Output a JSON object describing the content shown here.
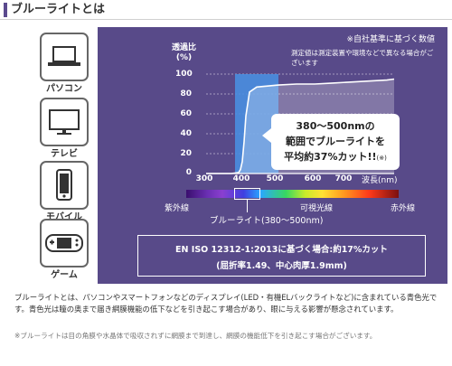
{
  "header": {
    "title": "ブルーライトとは"
  },
  "devices": [
    {
      "label": "パソコン",
      "icon": "laptop-icon"
    },
    {
      "label": "テレビ",
      "icon": "tv-icon"
    },
    {
      "label": "モバイル",
      "icon": "smartphone-icon"
    },
    {
      "label": "ゲーム",
      "icon": "game-console-icon"
    }
  ],
  "notes": {
    "header": "※自社基準に基づく数値",
    "sub": "測定値は測定装置や環境などで異なる場合がございます"
  },
  "chart_data": {
    "type": "line",
    "ylabel": "透過比\n(%)",
    "xlabel": "波長(nm)",
    "yticks": [
      100,
      80,
      60,
      40,
      20,
      0
    ],
    "xticks": [
      300,
      400,
      500,
      600,
      700
    ],
    "ylim": [
      0,
      100
    ],
    "xlim": [
      300,
      820
    ],
    "series": [
      {
        "x": [
          300,
          370,
          390,
          395,
          400,
          405,
          410,
          420,
          440,
          470,
          500,
          550,
          600,
          650,
          700,
          750,
          800,
          820
        ],
        "y": [
          0,
          0,
          1,
          4,
          12,
          32,
          58,
          82,
          87,
          88,
          89,
          90,
          90,
          91,
          92,
          93,
          94,
          95
        ]
      }
    ],
    "highlight_band": [
      380,
      500
    ],
    "callout": {
      "line1": "380〜500nmの",
      "line2": "範囲でブルーライトを",
      "line3": "平均約37%カット!!",
      "mark": "(※)"
    }
  },
  "spectrum": {
    "uv_label": "紫外線",
    "visible_label": "可視光線",
    "ir_label": "赤外線",
    "bluelight_label": "ブルーライト(380〜500nm)"
  },
  "iso": {
    "line1": "EN ISO 12312-1:2013に基づく場合:約17%カット",
    "line2": "(屈折率1.49、中心肉厚1.9mm)"
  },
  "description": "ブルーライトとは、パソコンやスマートフォンなどのディスプレイ(LED・有機ELバックライトなど)に含まれている青色光です。青色光は瞳の奥まで届き網膜機能の低下などを引き起こす場合があり、眼に与える影響が懸念されています。",
  "footnote": "※ブルーライトは目の角膜や水晶体で吸収されずに網膜まで到達し、網膜の機能低下を引き起こす場合がございます。",
  "colors": {
    "panel": "#584a89",
    "header_bar": "#5b4a8e",
    "band": "#4a8ee0"
  }
}
